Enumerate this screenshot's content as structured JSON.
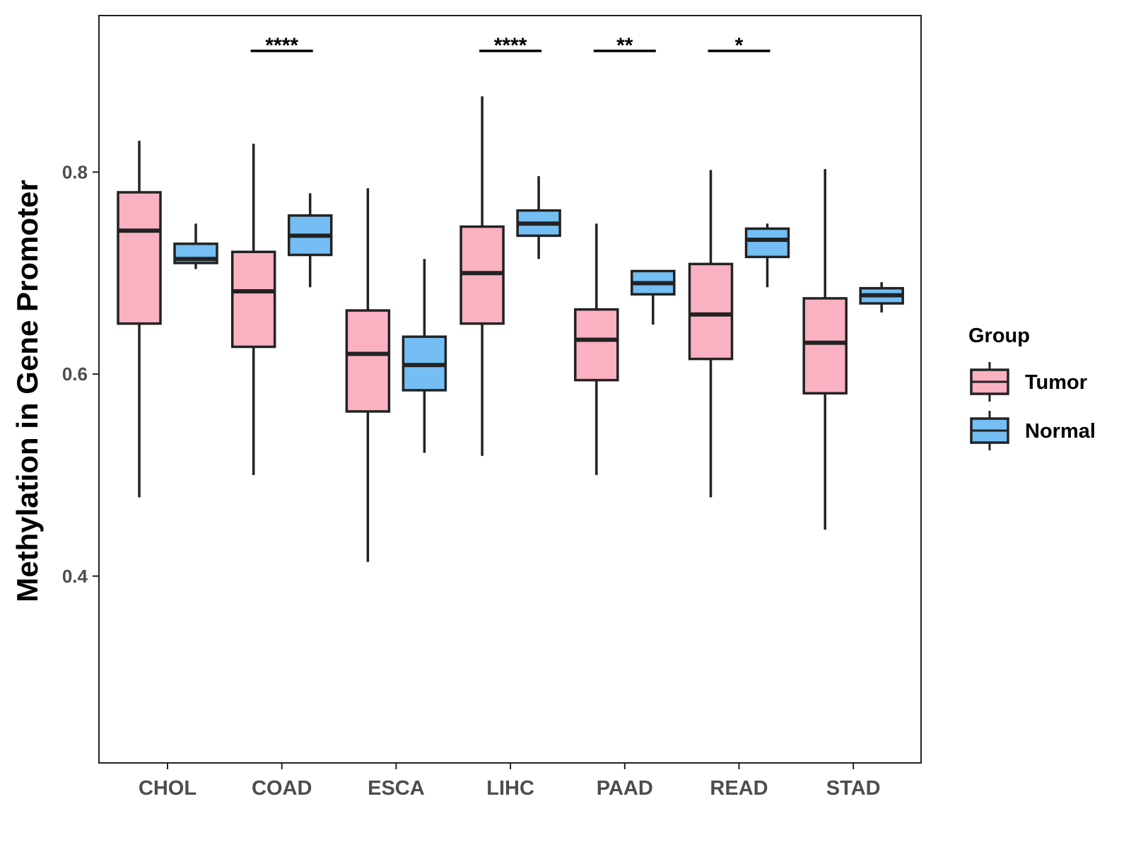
{
  "chart_data": {
    "type": "boxplot",
    "title": "",
    "xlabel": "",
    "ylabel": "Methylation in Gene Promoter",
    "ylim": [
      0.215,
      0.955
    ],
    "yticks": [
      0.4,
      0.6,
      0.8
    ],
    "ytick_labels": [
      "0.4",
      "0.6",
      "0.8"
    ],
    "grid": false,
    "legend": {
      "title": "Group",
      "position": "right",
      "entries": [
        {
          "name": "Tumor",
          "color": "#FAB1C2"
        },
        {
          "name": "Normal",
          "color": "#74BEF4"
        }
      ]
    },
    "categories": [
      "CHOL",
      "COAD",
      "ESCA",
      "LIHC",
      "PAAD",
      "READ",
      "STAD"
    ],
    "series": [
      {
        "name": "Tumor",
        "color": "#FAB1C2",
        "boxes": [
          {
            "min": 0.478,
            "q1": 0.65,
            "median": 0.742,
            "q3": 0.78,
            "max": 0.831
          },
          {
            "min": 0.5,
            "q1": 0.627,
            "median": 0.682,
            "q3": 0.721,
            "max": 0.828
          },
          {
            "min": 0.414,
            "q1": 0.563,
            "median": 0.62,
            "q3": 0.663,
            "max": 0.784
          },
          {
            "min": 0.519,
            "q1": 0.65,
            "median": 0.7,
            "q3": 0.746,
            "max": 0.875
          },
          {
            "min": 0.5,
            "q1": 0.594,
            "median": 0.634,
            "q3": 0.664,
            "max": 0.749
          },
          {
            "min": 0.478,
            "q1": 0.615,
            "median": 0.659,
            "q3": 0.709,
            "max": 0.802
          },
          {
            "min": 0.446,
            "q1": 0.581,
            "median": 0.631,
            "q3": 0.675,
            "max": 0.803
          }
        ]
      },
      {
        "name": "Normal",
        "color": "#74BEF4",
        "boxes": [
          {
            "min": 0.704,
            "q1": 0.71,
            "median": 0.714,
            "q3": 0.729,
            "max": 0.749
          },
          {
            "min": 0.686,
            "q1": 0.718,
            "median": 0.737,
            "q3": 0.757,
            "max": 0.779
          },
          {
            "min": 0.522,
            "q1": 0.584,
            "median": 0.609,
            "q3": 0.637,
            "max": 0.714
          },
          {
            "min": 0.714,
            "q1": 0.737,
            "median": 0.749,
            "q3": 0.762,
            "max": 0.796
          },
          {
            "min": 0.649,
            "q1": 0.679,
            "median": 0.69,
            "q3": 0.702,
            "max": 0.702
          },
          {
            "min": 0.686,
            "q1": 0.716,
            "median": 0.733,
            "q3": 0.744,
            "max": 0.749
          },
          {
            "min": 0.661,
            "q1": 0.67,
            "median": 0.678,
            "q3": 0.685,
            "max": 0.691
          }
        ]
      }
    ],
    "significance": [
      {
        "category": "CHOL",
        "label": ""
      },
      {
        "category": "COAD",
        "label": "****"
      },
      {
        "category": "ESCA",
        "label": ""
      },
      {
        "category": "LIHC",
        "label": "****"
      },
      {
        "category": "PAAD",
        "label": "**"
      },
      {
        "category": "READ",
        "label": "*"
      },
      {
        "category": "STAD",
        "label": ""
      }
    ],
    "significance_y": 0.92
  }
}
